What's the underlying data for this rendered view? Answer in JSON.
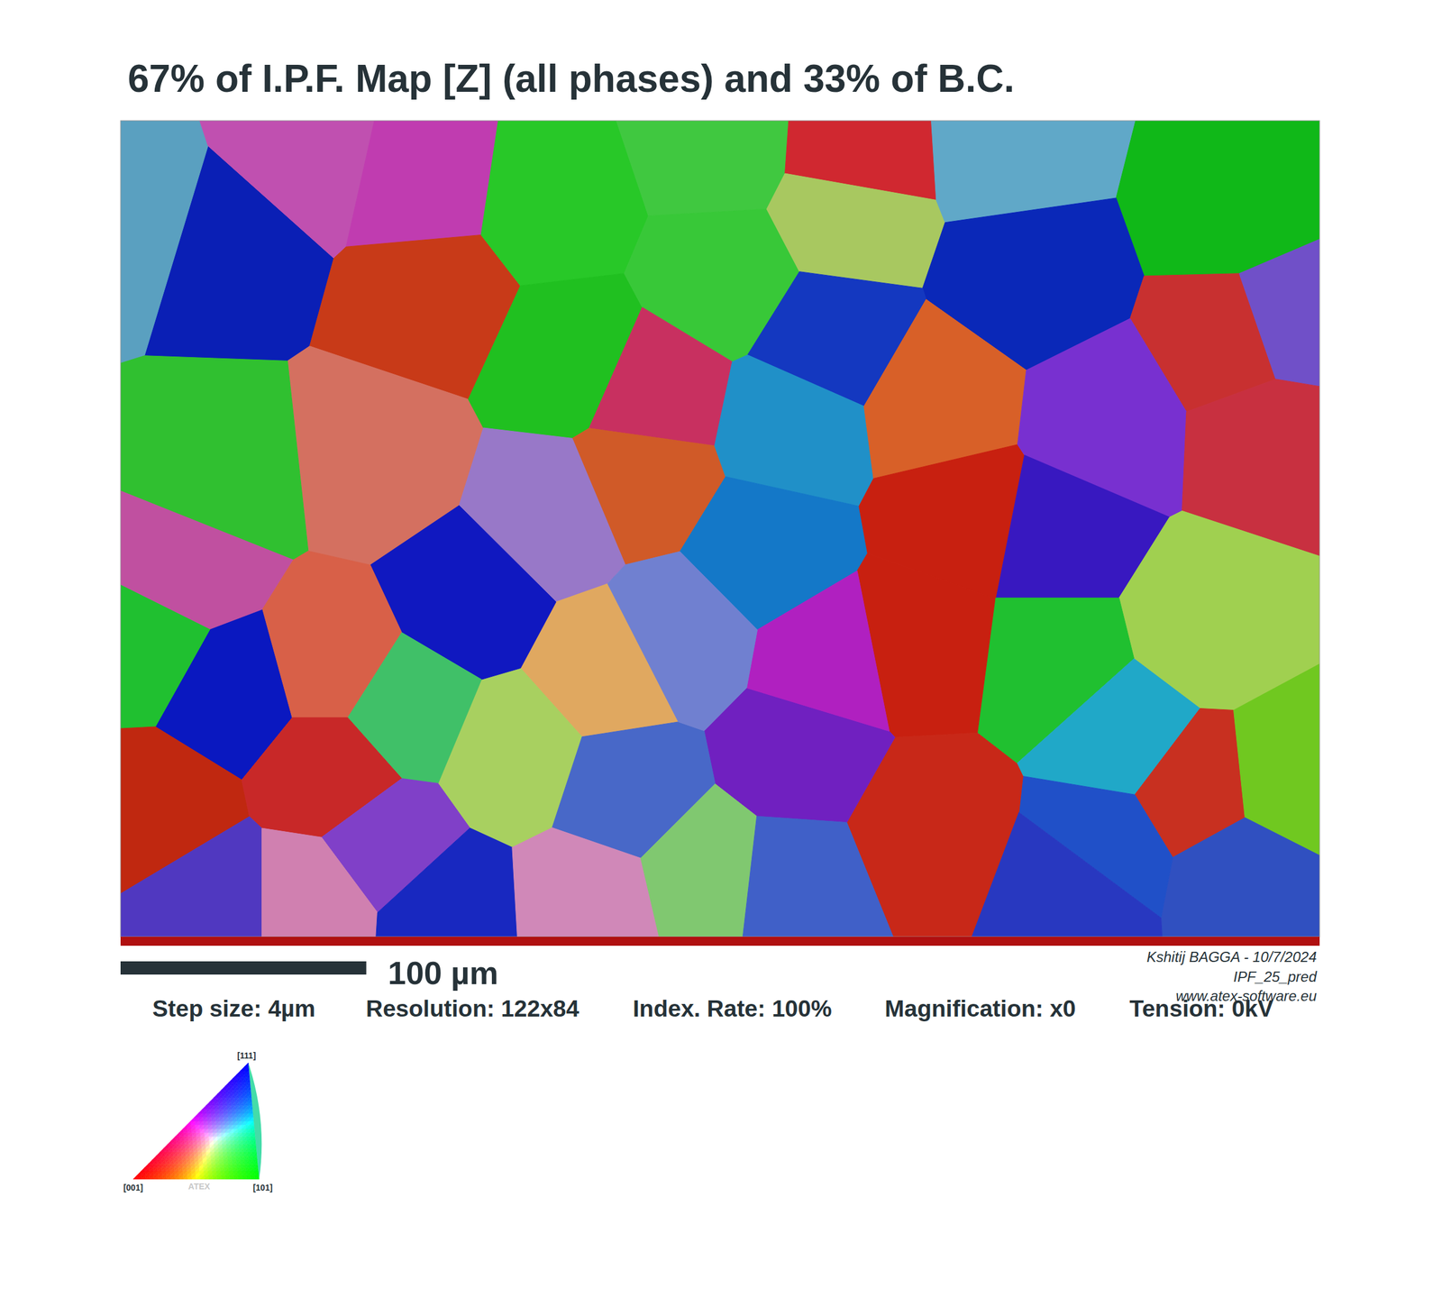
{
  "chart_data": {
    "type": "grain_map",
    "title": "67% of I.P.F. Map [Z] (all phases) and 33% of B.C.",
    "xlim": [
      0,
      488
    ],
    "ylim": [
      0,
      336
    ],
    "tick_labels": false,
    "grid": false,
    "grains": [
      {
        "x": 44.5,
        "y": 49,
        "color": "#0a1fb5"
      },
      {
        "x": 7,
        "y": 37.5,
        "color": "#5aa0c0"
      },
      {
        "x": 74.5,
        "y": 15,
        "color": "#c050b0"
      },
      {
        "x": 123,
        "y": 26,
        "color": "#c03cb0"
      },
      {
        "x": 127,
        "y": 72,
        "color": "#c83a18"
      },
      {
        "x": 104.5,
        "y": 140,
        "color": "#d47060"
      },
      {
        "x": 41,
        "y": 147,
        "color": "#30c030"
      },
      {
        "x": 175.5,
        "y": 34,
        "color": "#28c828"
      },
      {
        "x": 183,
        "y": 98,
        "color": "#20c020"
      },
      {
        "x": 243,
        "y": 11,
        "color": "#40c840"
      },
      {
        "x": 246,
        "y": 64,
        "color": "#38c838"
      },
      {
        "x": 299,
        "y": 15,
        "color": "#d02830"
      },
      {
        "x": 295,
        "y": 38,
        "color": "#a8c860"
      },
      {
        "x": 362.5,
        "y": 11,
        "color": "#60a8c8"
      },
      {
        "x": 452.5,
        "y": 34,
        "color": "#10b818"
      },
      {
        "x": 370,
        "y": 64,
        "color": "#0a28b8"
      },
      {
        "x": 288,
        "y": 90.5,
        "color": "#1438c0"
      },
      {
        "x": 454,
        "y": 92,
        "color": "#c83030"
      },
      {
        "x": 474,
        "y": 85,
        "color": "#7050c8"
      },
      {
        "x": 216.7,
        "y": 113,
        "color": "#c83060"
      },
      {
        "x": 212,
        "y": 147,
        "color": "#d05a28"
      },
      {
        "x": 175.5,
        "y": 162.5,
        "color": "#9878c8"
      },
      {
        "x": 273,
        "y": 125,
        "color": "#2090c8"
      },
      {
        "x": 261.5,
        "y": 177.6,
        "color": "#1478c8"
      },
      {
        "x": 333,
        "y": 117,
        "color": "#d86028"
      },
      {
        "x": 343.6,
        "y": 162.5,
        "color": "#c82010"
      },
      {
        "x": 400,
        "y": 125,
        "color": "#7830d0"
      },
      {
        "x": 381,
        "y": 170,
        "color": "#3818c0"
      },
      {
        "x": 467,
        "y": 128,
        "color": "#c83040"
      },
      {
        "x": 441,
        "y": 208,
        "color": "#a0d050"
      },
      {
        "x": 381,
        "y": 223,
        "color": "#20c030"
      },
      {
        "x": 407.5,
        "y": 253,
        "color": "#20a8c8"
      },
      {
        "x": 437.5,
        "y": 276,
        "color": "#c83020"
      },
      {
        "x": 475,
        "y": 272,
        "color": "#70c820"
      },
      {
        "x": 456,
        "y": 310,
        "color": "#3050c0"
      },
      {
        "x": 400,
        "y": 299,
        "color": "#2050c8"
      },
      {
        "x": 325,
        "y": 215.5,
        "color": "#c82010"
      },
      {
        "x": 329,
        "y": 291,
        "color": "#c82818"
      },
      {
        "x": 276.6,
        "y": 261,
        "color": "#7020c0"
      },
      {
        "x": 288,
        "y": 223,
        "color": "#b020c0"
      },
      {
        "x": 198,
        "y": 227,
        "color": "#e0a860"
      },
      {
        "x": 160.5,
        "y": 261,
        "color": "#a8d060"
      },
      {
        "x": 142,
        "y": 196.6,
        "color": "#1018c0"
      },
      {
        "x": 44.5,
        "y": 234.5,
        "color": "#0a18c0"
      },
      {
        "x": 11,
        "y": 215.5,
        "color": "#20c030"
      },
      {
        "x": 14.6,
        "y": 283.7,
        "color": "#c02810"
      },
      {
        "x": 26,
        "y": 185,
        "color": "#c050a0"
      },
      {
        "x": 86,
        "y": 223,
        "color": "#d86048"
      },
      {
        "x": 115.6,
        "y": 242,
        "color": "#40c068"
      },
      {
        "x": 86,
        "y": 268.6,
        "color": "#c82828"
      },
      {
        "x": 108,
        "y": 299,
        "color": "#8040c8"
      },
      {
        "x": 37,
        "y": 321.6,
        "color": "#5038c0"
      },
      {
        "x": 78,
        "y": 321.6,
        "color": "#d080b0"
      },
      {
        "x": 131.5,
        "y": 325,
        "color": "#1828c0"
      },
      {
        "x": 205.5,
        "y": 276,
        "color": "#4868c8"
      },
      {
        "x": 190,
        "y": 321.6,
        "color": "#d088b8"
      },
      {
        "x": 239,
        "y": 310,
        "color": "#80c870"
      },
      {
        "x": 273,
        "y": 314,
        "color": "#4060c8"
      },
      {
        "x": 227.5,
        "y": 211.7,
        "color": "#7080d0"
      },
      {
        "x": 389,
        "y": 314,
        "color": "#2838c0"
      }
    ],
    "scale_bar": {
      "value": 100,
      "label": "100 µm"
    },
    "info": [
      "Step size: 4µm",
      "Resolution: 122x84",
      "Index. Rate: 100%",
      "Magnification: x0",
      "Tension: 0kV"
    ],
    "credits": [
      "Kshitij BAGGA - 10/7/2024",
      "IPF_25_pred",
      "www.atex-software.eu"
    ],
    "color_key": {
      "top": "[111]",
      "left": "[001]",
      "right": "[101]",
      "watermark": "ATEX"
    }
  }
}
